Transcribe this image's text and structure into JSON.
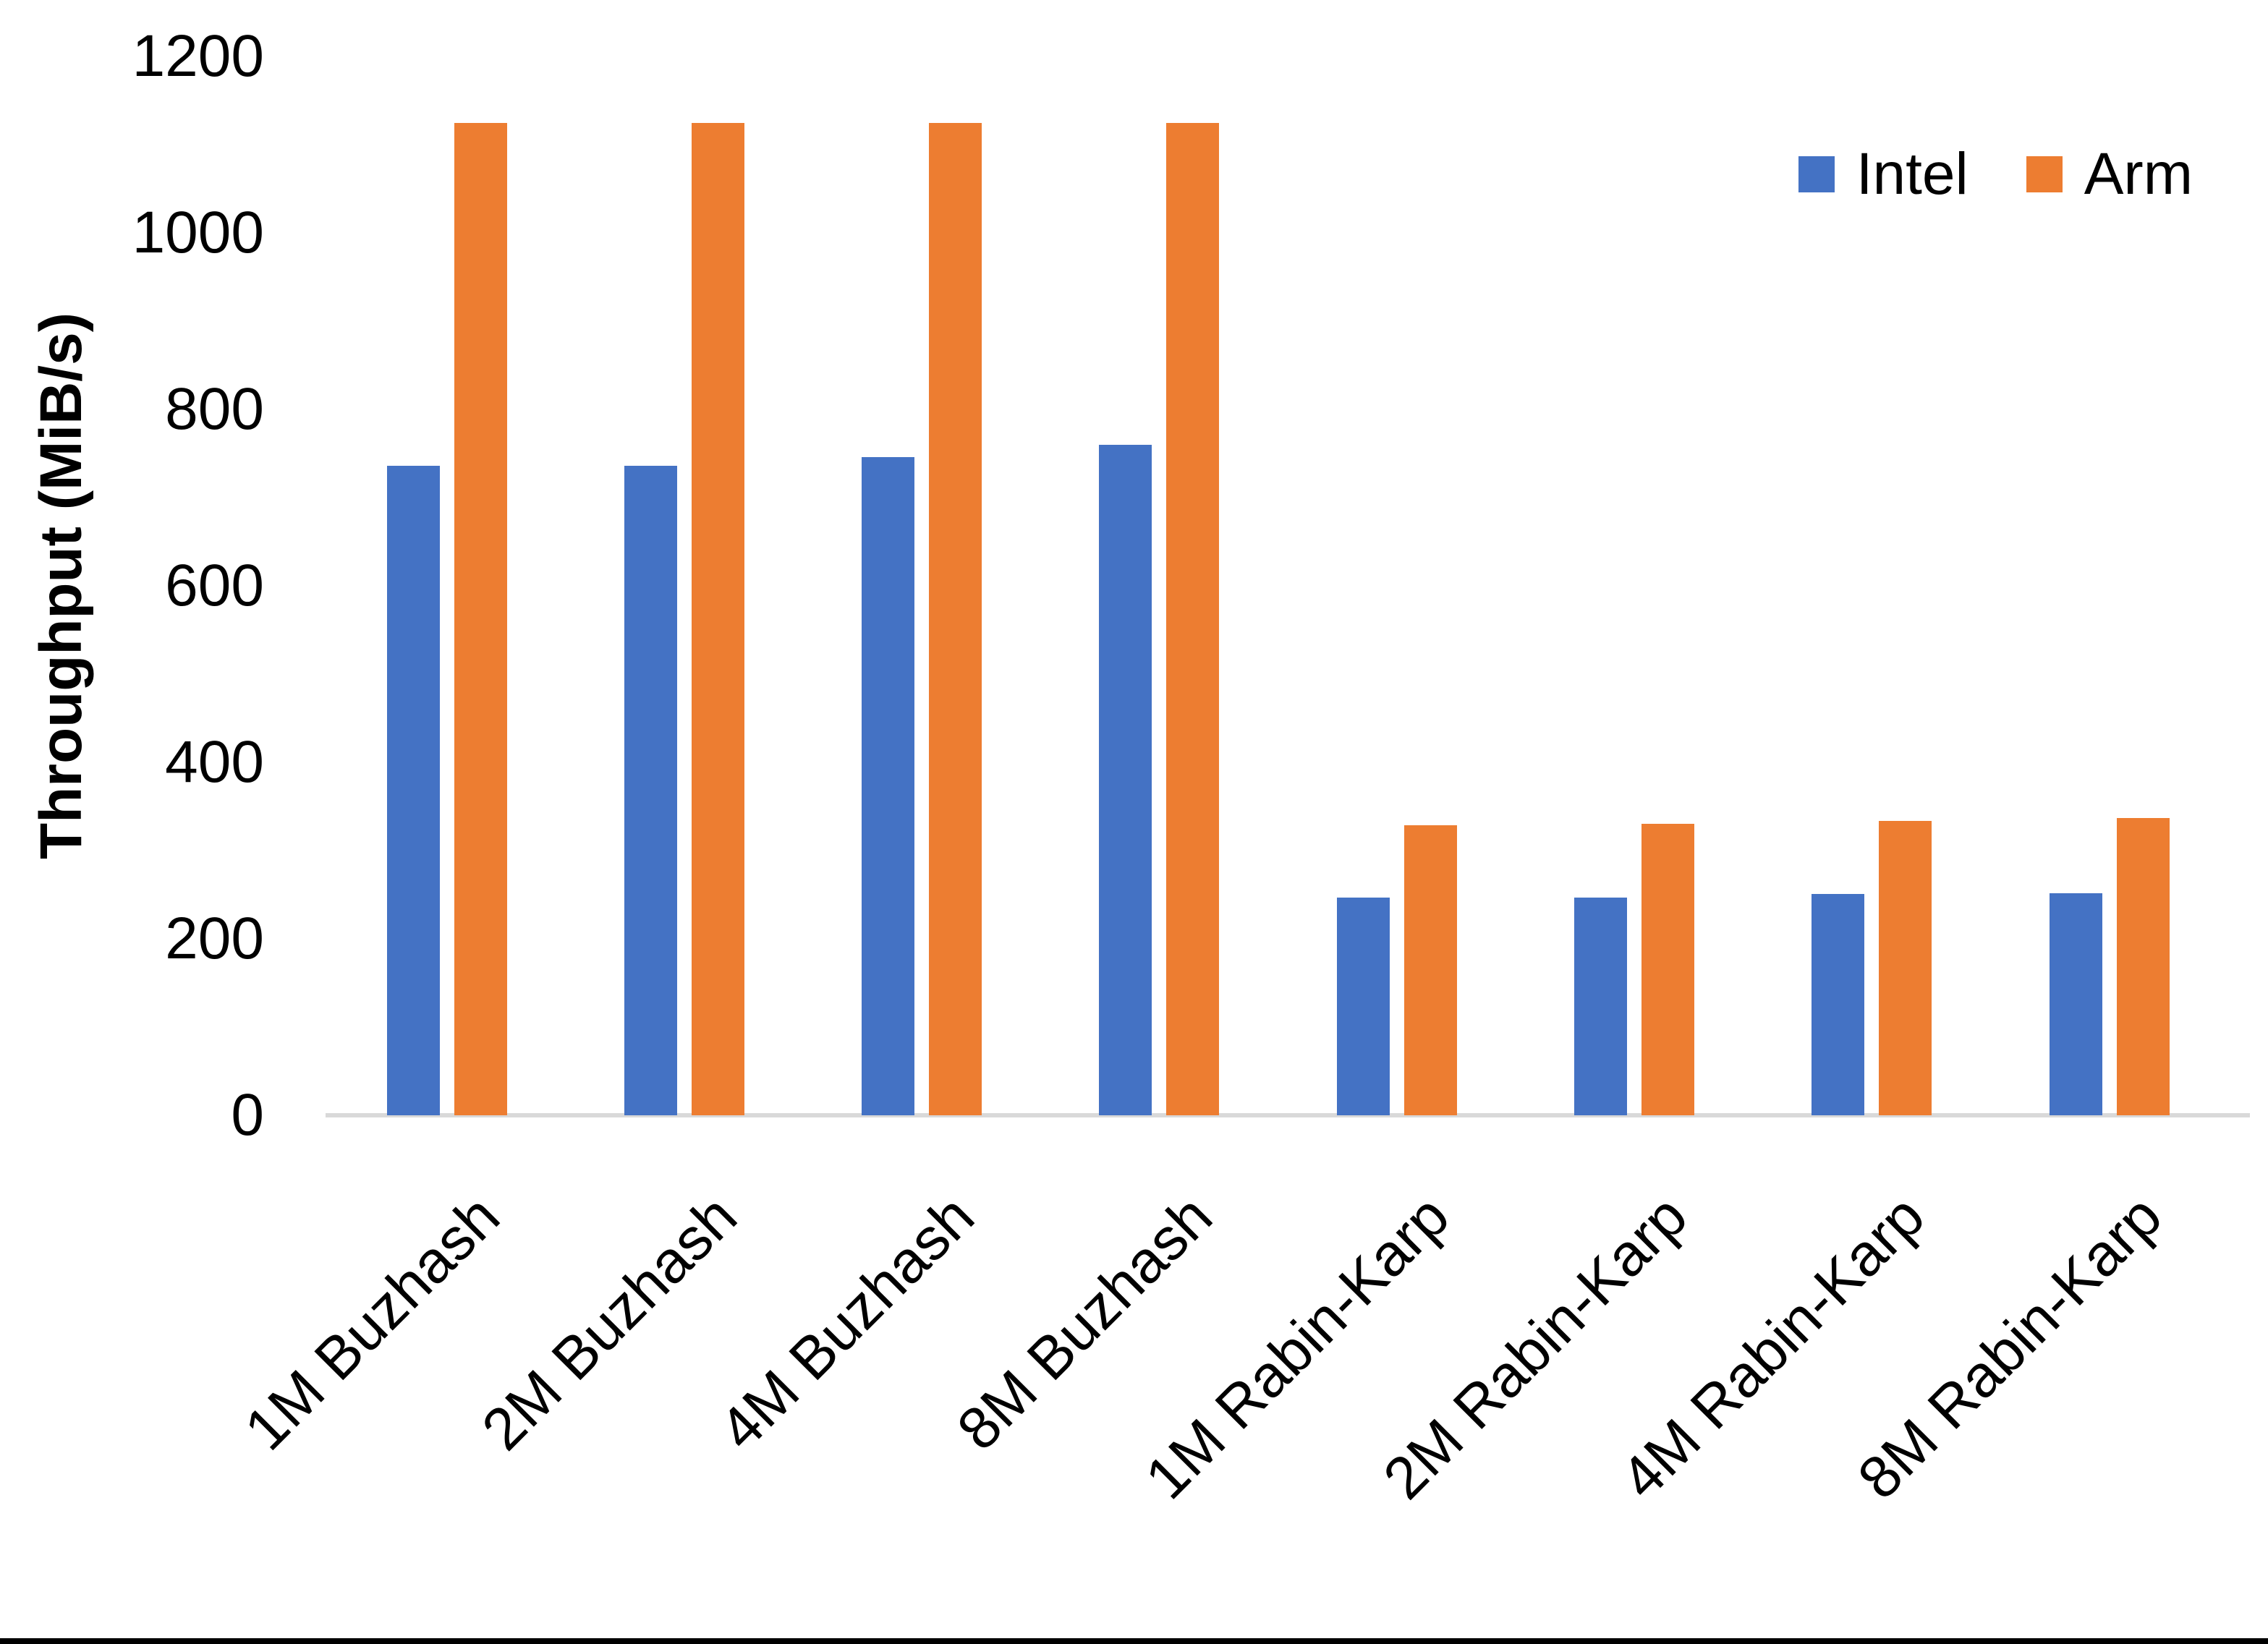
{
  "chart_data": {
    "type": "bar",
    "title": "",
    "xlabel": "",
    "ylabel": "Throughput (MiB/s)",
    "ylim": [
      0,
      1200
    ],
    "ytick_step": 200,
    "yticks": [
      0,
      200,
      400,
      600,
      800,
      1000,
      1200
    ],
    "grid": false,
    "legend_position": "top-right",
    "categories": [
      "1M Buzhash",
      "2M Buzhash",
      "4M Buzhash",
      "8M Buzhash",
      "1M Rabin-Karp",
      "2M Rabin-Karp",
      "4M Rabin-Karp",
      "8M Rabin-Karp"
    ],
    "series": [
      {
        "name": "Intel",
        "color": "#4472C4",
        "values": [
          736,
          736,
          746,
          760,
          247,
          247,
          251,
          252
        ]
      },
      {
        "name": "Arm",
        "color": "#ED7D31",
        "values": [
          1125,
          1125,
          1125,
          1125,
          329,
          330,
          334,
          337
        ]
      }
    ]
  }
}
